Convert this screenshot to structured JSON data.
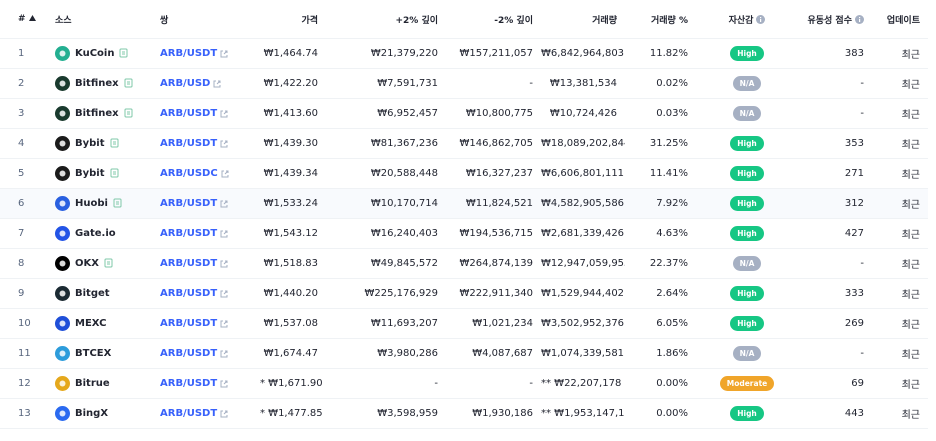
{
  "header": {
    "rank": "#",
    "source": "소스",
    "pair": "쌍",
    "price": "가격",
    "plus_depth": "+2% 깊이",
    "minus_depth": "-2% 깊이",
    "volume": "거래량",
    "volume_pct": "거래량 %",
    "confidence": "자산감",
    "liquidity": "유동성 점수",
    "updated": "업데이트"
  },
  "table": {
    "rows": [
      {
        "rank": 1,
        "source": "KuCoin",
        "icon_color": "#23af91",
        "verified": true,
        "pair": "ARB/USDT",
        "price": "₩1,464.74",
        "plus_depth": "₩21,379,220",
        "minus_depth": "₩157,211,057",
        "volume": "₩6,842,964,803",
        "volume_pct": "11.82%",
        "confidence": "High",
        "badge_color": "#16c784",
        "liquidity": 383,
        "updated": "최근"
      },
      {
        "rank": 2,
        "source": "Bitfinex",
        "icon_color": "#1a3a2e",
        "verified": true,
        "pair": "ARB/USD",
        "price": "₩1,422.20",
        "plus_depth": "₩7,591,731",
        "minus_depth": "-",
        "volume": "₩13,381,534",
        "volume_pct": "0.02%",
        "confidence": "N/A",
        "badge_color": "#a6b0c3",
        "liquidity": "-",
        "updated": "최근"
      },
      {
        "rank": 3,
        "source": "Bitfinex",
        "icon_color": "#1a3a2e",
        "verified": true,
        "pair": "ARB/USDT",
        "price": "₩1,413.60",
        "plus_depth": "₩6,952,457",
        "minus_depth": "₩10,800,775",
        "volume": "₩10,724,426",
        "volume_pct": "0.03%",
        "confidence": "N/A",
        "badge_color": "#a6b0c3",
        "liquidity": "-",
        "updated": "최근"
      },
      {
        "rank": 4,
        "source": "Bybit",
        "icon_color": "#1b1b1b",
        "verified": true,
        "pair": "ARB/USDT",
        "price": "₩1,439.30",
        "plus_depth": "₩81,367,236",
        "minus_depth": "₩146,862,705",
        "volume": "₩18,089,202,844",
        "volume_pct": "31.25%",
        "confidence": "High",
        "badge_color": "#16c784",
        "liquidity": 353,
        "updated": "최근"
      },
      {
        "rank": 5,
        "source": "Bybit",
        "icon_color": "#1b1b1b",
        "verified": true,
        "pair": "ARB/USDC",
        "price": "₩1,439.34",
        "plus_depth": "₩20,588,448",
        "minus_depth": "₩16,327,237",
        "volume": "₩6,606,801,111",
        "volume_pct": "11.41%",
        "confidence": "High",
        "badge_color": "#16c784",
        "liquidity": 271,
        "updated": "최근"
      },
      {
        "rank": 6,
        "source": "Huobi",
        "icon_color": "#2a60e0",
        "verified": true,
        "highlighted": true,
        "pair": "ARB/USDT",
        "price": "₩1,533.24",
        "plus_depth": "₩10,170,714",
        "minus_depth": "₩11,824,521",
        "volume": "₩4,582,905,586",
        "volume_pct": "7.92%",
        "confidence": "High",
        "badge_color": "#16c784",
        "liquidity": 312,
        "updated": "최근"
      },
      {
        "rank": 7,
        "source": "Gate.io",
        "icon_color": "#2354e6",
        "verified": false,
        "pair": "ARB/USDT",
        "price": "₩1,543.12",
        "plus_depth": "₩16,240,403",
        "minus_depth": "₩194,536,715",
        "volume": "₩2,681,339,426",
        "volume_pct": "4.63%",
        "confidence": "High",
        "badge_color": "#16c784",
        "liquidity": 427,
        "updated": "최근"
      },
      {
        "rank": 8,
        "source": "OKX",
        "icon_color": "#000000",
        "verified": true,
        "pair": "ARB/USDT",
        "price": "₩1,518.83",
        "plus_depth": "₩49,845,572",
        "minus_depth": "₩264,874,139",
        "volume": "₩12,947,059,955",
        "volume_pct": "22.37%",
        "confidence": "N/A",
        "badge_color": "#a6b0c3",
        "liquidity": "-",
        "updated": "최근"
      },
      {
        "rank": 9,
        "source": "Bitget",
        "icon_color": "#1b2a33",
        "verified": false,
        "pair": "ARB/USDT",
        "price": "₩1,440.20",
        "plus_depth": "₩225,176,929",
        "minus_depth": "₩222,911,340",
        "volume": "₩1,529,944,402",
        "volume_pct": "2.64%",
        "confidence": "High",
        "badge_color": "#16c784",
        "liquidity": 333,
        "updated": "최근"
      },
      {
        "rank": 10,
        "source": "MEXC",
        "icon_color": "#1f4fd8",
        "verified": false,
        "pair": "ARB/USDT",
        "price": "₩1,537.08",
        "plus_depth": "₩11,693,207",
        "minus_depth": "₩1,021,234",
        "volume": "₩3,502,952,376",
        "volume_pct": "6.05%",
        "confidence": "High",
        "badge_color": "#16c784",
        "liquidity": 269,
        "updated": "최근"
      },
      {
        "rank": 11,
        "source": "BTCEX",
        "icon_color": "#2d9cdb",
        "verified": false,
        "pair": "ARB/USDT",
        "price": "₩1,674.47",
        "plus_depth": "₩3,980,286",
        "minus_depth": "₩4,087,687",
        "volume": "₩1,074,339,581",
        "volume_pct": "1.86%",
        "confidence": "N/A",
        "badge_color": "#a6b0c3",
        "liquidity": "-",
        "updated": "최근"
      },
      {
        "rank": 12,
        "source": "Bitrue",
        "icon_color": "#e5a81c",
        "verified": false,
        "pair": "ARB/USDT",
        "price": "* ₩1,671.90",
        "plus_depth": "-",
        "minus_depth": "-",
        "volume": "** ₩22,207,178",
        "volume_pct": "0.00%",
        "confidence": "Moderate",
        "badge_color": "#f0a52a",
        "liquidity": 69,
        "updated": "최근"
      },
      {
        "rank": 13,
        "source": "BingX",
        "icon_color": "#2a6af0",
        "verified": false,
        "pair": "ARB/USDT",
        "price": "* ₩1,477.85",
        "plus_depth": "₩3,598,959",
        "minus_depth": "₩1,930,186",
        "volume": "** ₩1,953,147,100",
        "volume_pct": "0.00%",
        "confidence": "High",
        "badge_color": "#16c784",
        "liquidity": 443,
        "updated": "최근"
      }
    ]
  }
}
